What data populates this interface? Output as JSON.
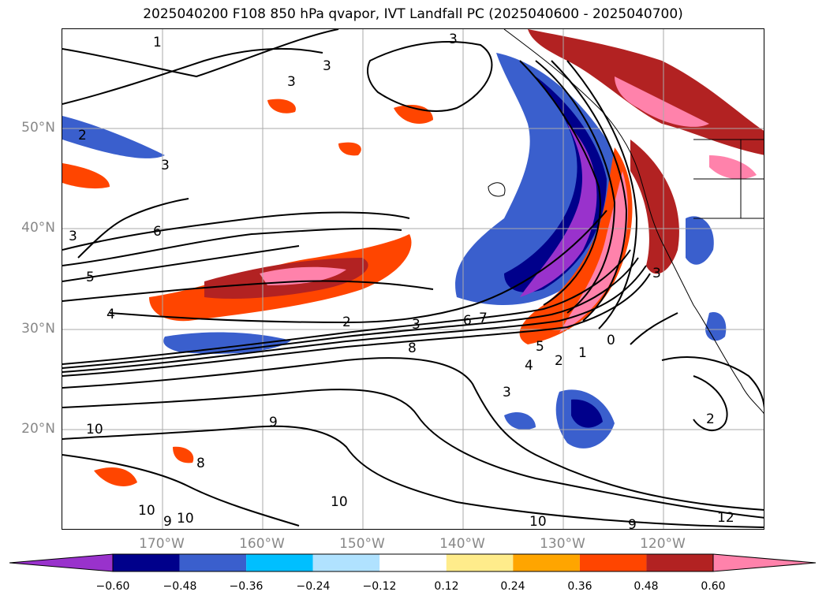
{
  "title": "2025040200 F108 850 hPa qvapor, IVT Landfall PC (2025040600 - 2025040700)",
  "lat_labels": [
    "50°N",
    "40°N",
    "30°N",
    "20°N"
  ],
  "lon_labels": [
    "170°W",
    "160°W",
    "150°W",
    "140°W",
    "130°W",
    "120°W"
  ],
  "colorbar": {
    "ticks": [
      "−0.60",
      "−0.48",
      "−0.36",
      "−0.24",
      "−0.12",
      "0.12",
      "0.24",
      "0.36",
      "0.48",
      "0.60"
    ],
    "colors": [
      "#9932cc",
      "#00008b",
      "#3a5fcd",
      "#00bfff",
      "#b0e2ff",
      "#ffffff",
      "#ffec8b",
      "#ffa500",
      "#ff4500",
      "#b22222",
      "#ff82ab"
    ]
  },
  "contour_labels": [
    "1",
    "2",
    "3",
    "3",
    "3",
    "3",
    "3",
    "6",
    "5",
    "4",
    "2",
    "3",
    "6",
    "7",
    "8",
    "5",
    "4",
    "2",
    "1",
    "0",
    "3",
    "3",
    "2",
    "10",
    "9",
    "8",
    "10",
    "9",
    "10",
    "10",
    "10",
    "9",
    "12"
  ]
}
